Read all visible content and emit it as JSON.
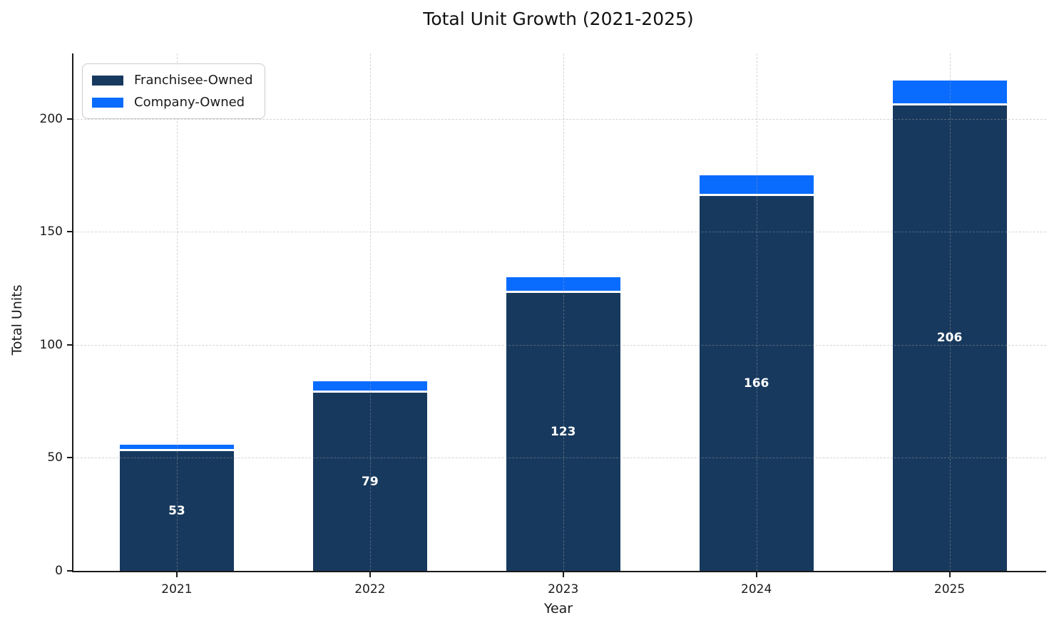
{
  "chart_data": {
    "type": "bar",
    "stacked": true,
    "title": "Total Unit Growth (2021-2025)",
    "xlabel": "Year",
    "ylabel": "Total Units",
    "categories": [
      "2021",
      "2022",
      "2023",
      "2024",
      "2025"
    ],
    "series": [
      {
        "name": "Franchisee-Owned",
        "color": "#17395E",
        "values": [
          53,
          79,
          123,
          166,
          206
        ]
      },
      {
        "name": "Company-Owned",
        "color": "#0A6CFF",
        "values": [
          2,
          4,
          6,
          8,
          10
        ]
      }
    ],
    "totals": [
      55,
      83,
      129,
      174,
      216
    ],
    "bar_labels": [
      "53",
      "79",
      "123",
      "166",
      "206"
    ],
    "bar_label_color": "#ffffff",
    "yticks": [
      "0",
      "50",
      "100",
      "150",
      "200"
    ],
    "ylim": [
      0,
      229
    ],
    "grid": "dashed, drawn above bars",
    "legend_position": "upper-left",
    "background_color": "#ffffff",
    "axis_color": "#1a1a1a"
  }
}
